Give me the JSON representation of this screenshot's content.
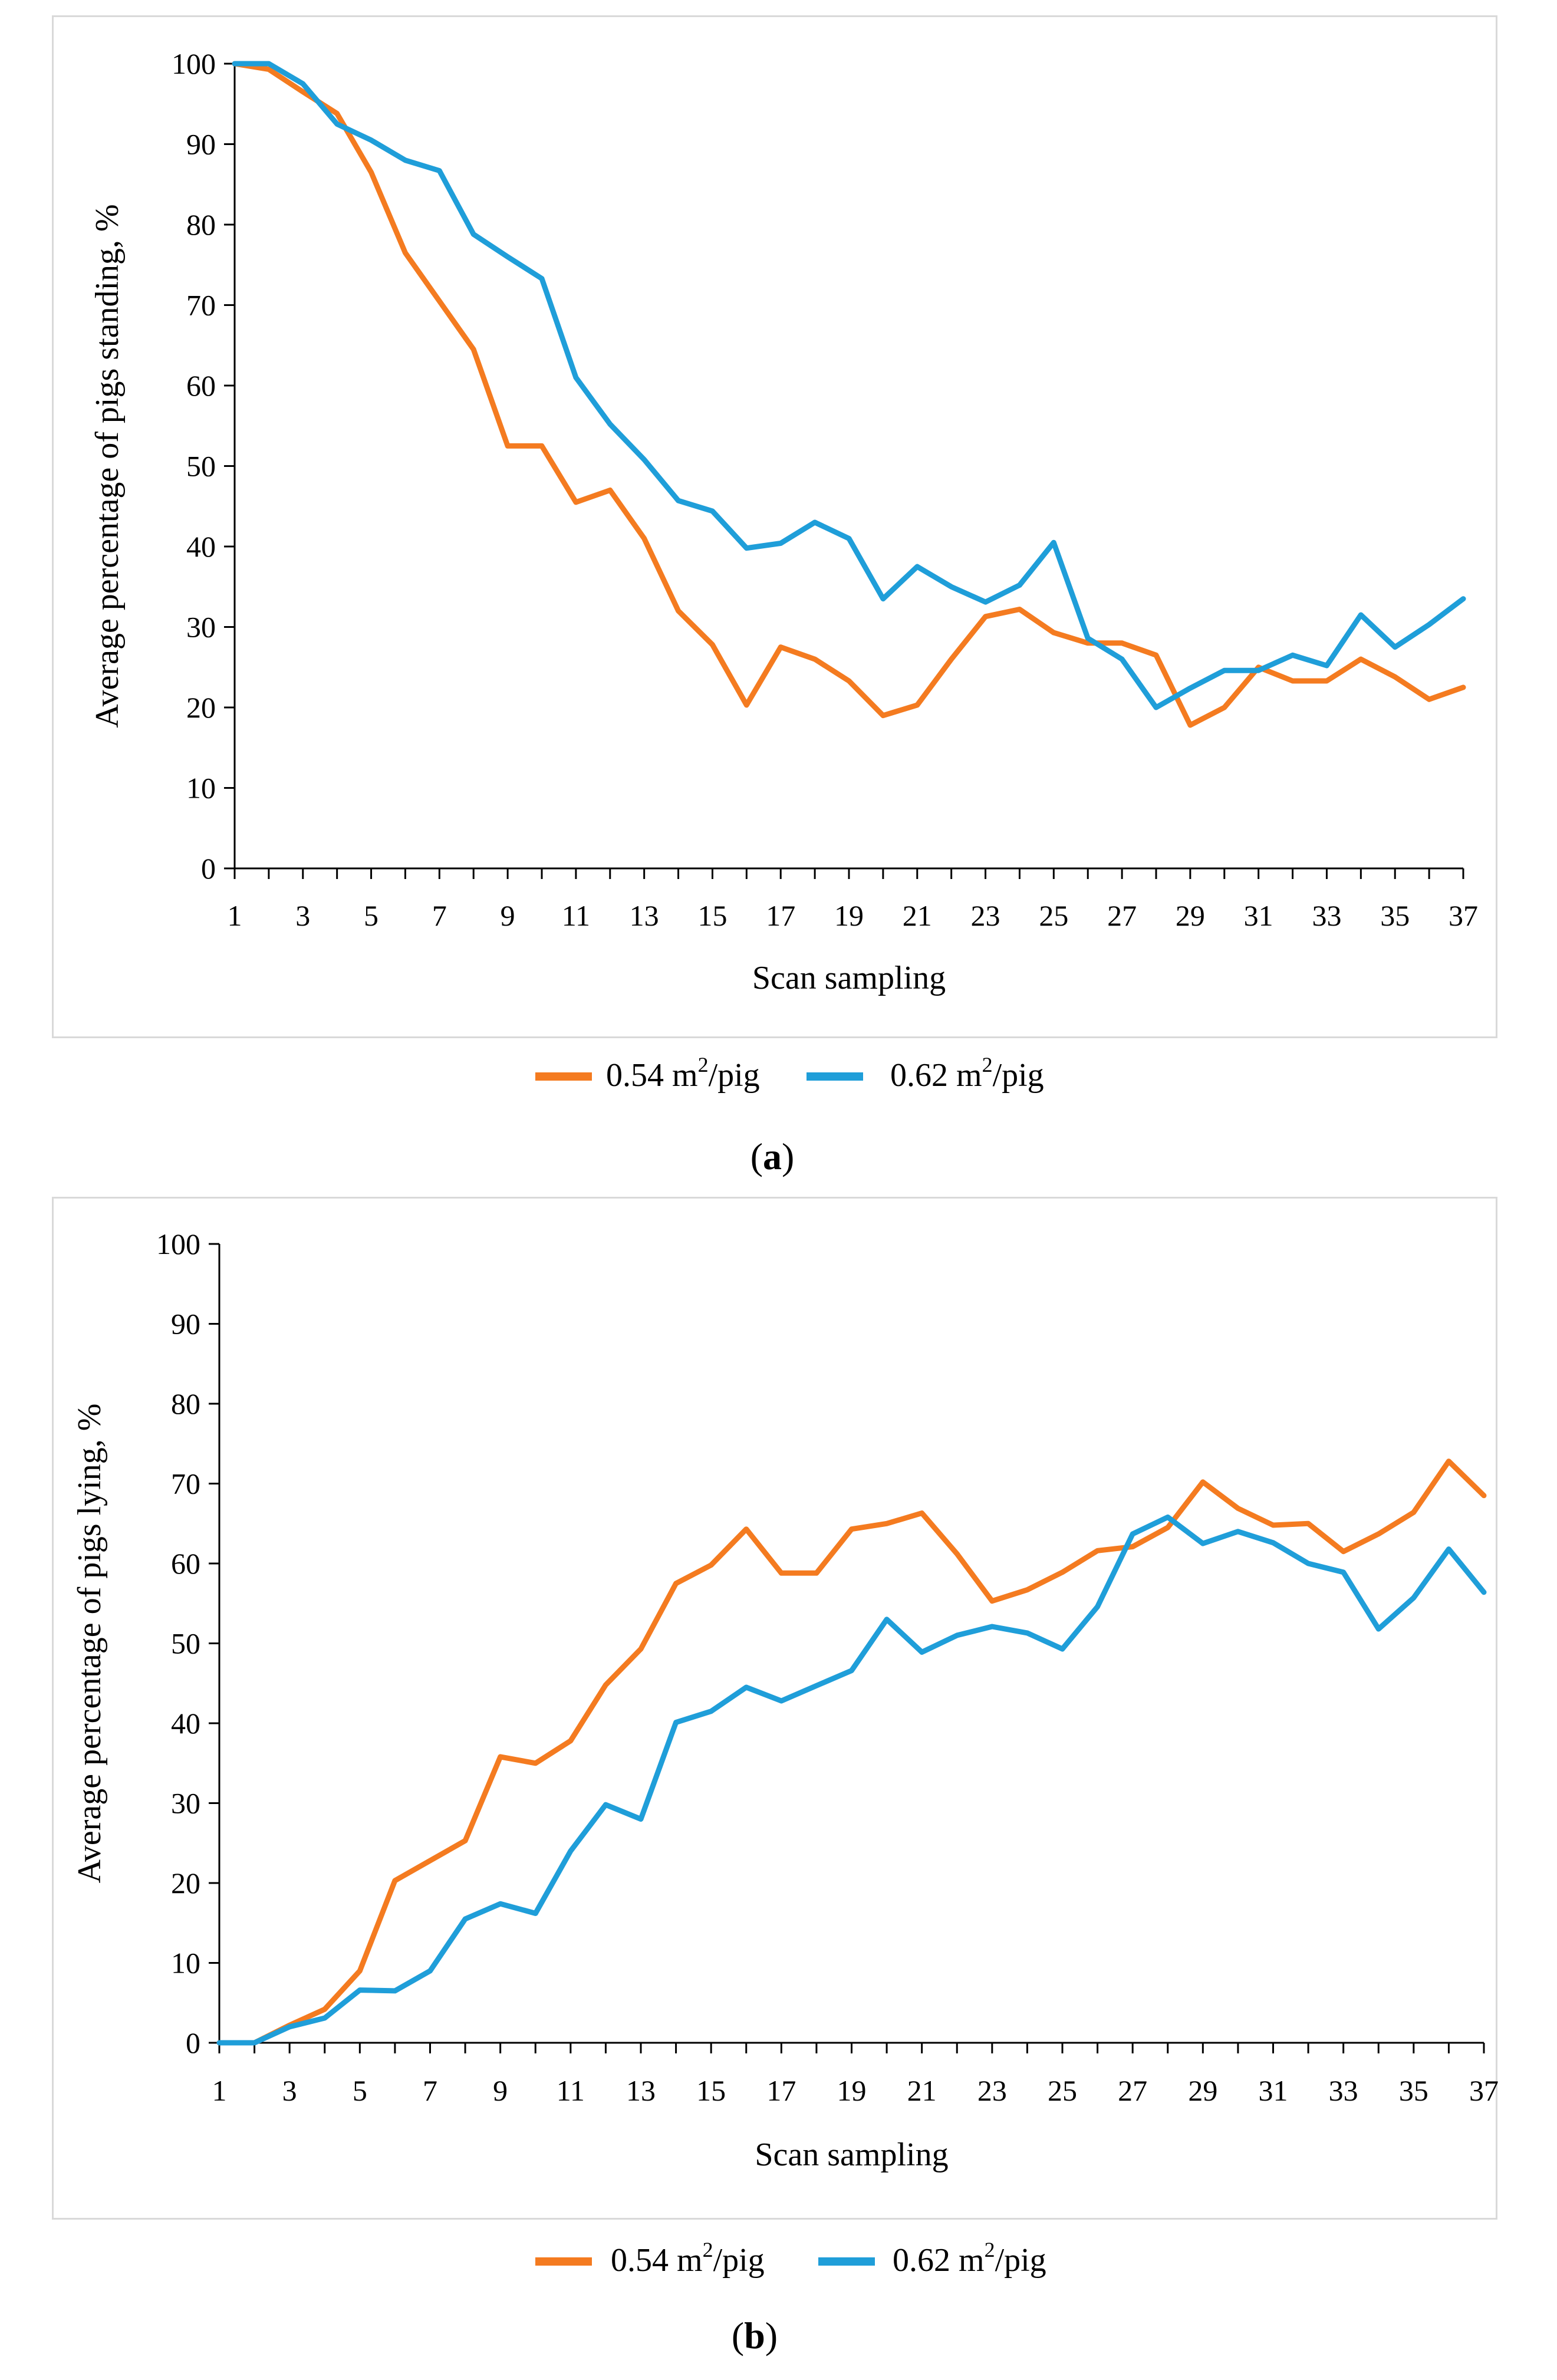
{
  "chart_data": [
    {
      "id": "a",
      "type": "line",
      "panel_label": "a",
      "xlabel": "Scan sampling",
      "ylabel": "Average percentage of pigs standing, %",
      "ylim": [
        0,
        100
      ],
      "yticks": [
        0,
        10,
        20,
        30,
        40,
        50,
        60,
        70,
        80,
        90,
        100
      ],
      "xlim": [
        1,
        37
      ],
      "xticks": [
        1,
        3,
        5,
        7,
        9,
        11,
        13,
        15,
        17,
        19,
        21,
        23,
        25,
        27,
        29,
        31,
        33,
        35,
        37
      ],
      "grid": false,
      "legend": "bottom",
      "series": [
        {
          "name": "0.54 m²/pig",
          "legend_main": "0.54 m",
          "legend_sup": "2",
          "legend_tail": "/pig",
          "color": "#f47b20",
          "x": [
            1,
            2,
            3,
            4,
            5,
            6,
            7,
            8,
            9,
            10,
            11,
            12,
            13,
            14,
            15,
            16,
            17,
            18,
            19,
            20,
            21,
            22,
            23,
            24,
            25,
            26,
            27,
            28,
            29,
            30,
            31,
            32,
            33,
            34,
            35,
            36,
            37
          ],
          "values": [
            100,
            99.3,
            96.5,
            93.8,
            86.5,
            76.5,
            70.5,
            64.5,
            52.5,
            52.5,
            45.5,
            47,
            41,
            32,
            27.8,
            20.3,
            27.5,
            26,
            23.3,
            19,
            20.3,
            26,
            31.3,
            32.2,
            29.3,
            28,
            28,
            26.5,
            17.8,
            20,
            25,
            23.3,
            23.3,
            26,
            23.8,
            21,
            22.5
          ]
        },
        {
          "name": "0.62 m²/pig",
          "legend_main": "0.62 m",
          "legend_sup": "2",
          "legend_tail": "/pig",
          "color": "#1f9ed9",
          "x": [
            1,
            2,
            3,
            4,
            5,
            6,
            7,
            8,
            9,
            10,
            11,
            12,
            13,
            14,
            15,
            16,
            17,
            18,
            19,
            20,
            21,
            22,
            23,
            24,
            25,
            26,
            27,
            28,
            29,
            30,
            31,
            32,
            33,
            34,
            35,
            36,
            37
          ],
          "values": [
            100,
            100,
            97.5,
            92.5,
            90.5,
            88,
            86.7,
            78.8,
            76,
            73.3,
            61,
            55.2,
            50.8,
            45.7,
            44.4,
            39.8,
            40.4,
            43,
            41,
            33.5,
            37.5,
            35,
            33.1,
            35.2,
            40.5,
            28.6,
            26,
            20,
            22.4,
            24.6,
            24.6,
            26.5,
            25.2,
            31.5,
            27.5,
            30.3,
            33.5
          ]
        }
      ]
    },
    {
      "id": "b",
      "type": "line",
      "panel_label": "b",
      "xlabel": "Scan sampling",
      "ylabel": "Average percentage of pigs lying, %",
      "ylim": [
        0,
        100
      ],
      "yticks": [
        0,
        10,
        20,
        30,
        40,
        50,
        60,
        70,
        80,
        90,
        100
      ],
      "xlim": [
        1,
        37
      ],
      "xticks": [
        1,
        3,
        5,
        7,
        9,
        11,
        13,
        15,
        17,
        19,
        21,
        23,
        25,
        27,
        29,
        31,
        33,
        35,
        37
      ],
      "grid": false,
      "legend": "bottom",
      "series": [
        {
          "name": "0.54 m²/pig",
          "legend_main": "0.54 m",
          "legend_sup": "2",
          "legend_tail": "/pig",
          "color": "#f47b20",
          "x": [
            1,
            2,
            3,
            4,
            5,
            6,
            7,
            8,
            9,
            10,
            11,
            12,
            13,
            14,
            15,
            16,
            17,
            18,
            19,
            20,
            21,
            22,
            23,
            24,
            25,
            26,
            27,
            28,
            29,
            30,
            31,
            32,
            33,
            34,
            35,
            36,
            37
          ],
          "values": [
            0,
            0,
            2.2,
            4.2,
            9,
            20.3,
            22.8,
            25.3,
            35.8,
            35,
            37.8,
            44.8,
            49.3,
            57.5,
            59.8,
            64.3,
            58.8,
            58.8,
            64.3,
            65,
            66.3,
            61.2,
            55.3,
            56.7,
            58.9,
            61.6,
            62.1,
            64.5,
            70.2,
            66.9,
            64.8,
            65,
            61.5,
            63.7,
            66.4,
            72.8,
            68.5
          ]
        },
        {
          "name": "0.62 m²/pig",
          "legend_main": "0.62 m",
          "legend_sup": "2",
          "legend_tail": "/pig",
          "color": "#1f9ed9",
          "x": [
            1,
            2,
            3,
            4,
            5,
            6,
            7,
            8,
            9,
            10,
            11,
            12,
            13,
            14,
            15,
            16,
            17,
            18,
            19,
            20,
            21,
            22,
            23,
            24,
            25,
            26,
            27,
            28,
            29,
            30,
            31,
            32,
            33,
            34,
            35,
            36,
            37
          ],
          "values": [
            0,
            0,
            2,
            3.1,
            6.6,
            6.5,
            9,
            15.5,
            17.4,
            16.2,
            24,
            29.8,
            28,
            40.1,
            41.5,
            44.5,
            42.8,
            44.7,
            46.6,
            53,
            48.9,
            51,
            52.1,
            51.3,
            49.3,
            54.6,
            63.7,
            65.8,
            62.5,
            64,
            62.6,
            60,
            58.9,
            51.8,
            55.7,
            61.8,
            56.4
          ]
        }
      ]
    }
  ]
}
